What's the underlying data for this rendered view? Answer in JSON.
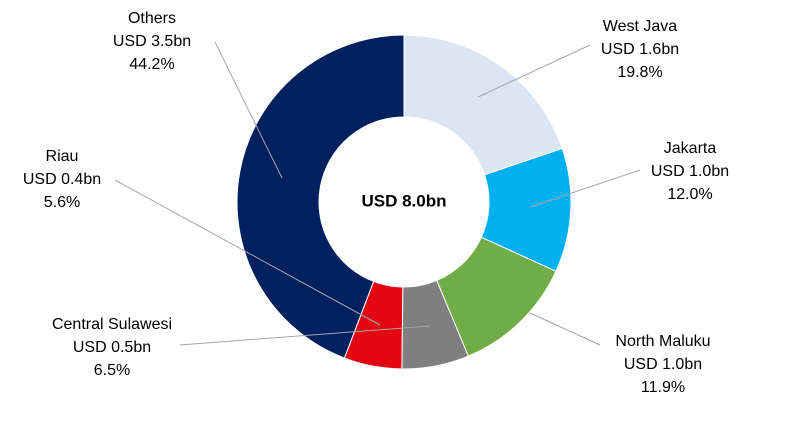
{
  "chart_data": {
    "type": "donut",
    "center_label": "USD 8.0bn",
    "categories": [
      "West Java",
      "Jakarta",
      "North Maluku",
      "Central Sulawesi",
      "Riau",
      "Others"
    ],
    "values": [
      19.8,
      12.0,
      11.9,
      6.5,
      5.6,
      44.2
    ],
    "value_labels": [
      "19.8%",
      "12.0%",
      "11.9%",
      "6.5%",
      "5.6%",
      "44.2%"
    ],
    "amount_labels": [
      "USD 1.6bn",
      "USD 1.0bn",
      "USD 1.0bn",
      "USD 0.5bn",
      "USD 0.4bn",
      "USD 3.5bn"
    ],
    "colors": [
      "#dce6f2",
      "#00b0f0",
      "#70ad47",
      "#7f7f7f",
      "#e30613",
      "#002060"
    ]
  }
}
